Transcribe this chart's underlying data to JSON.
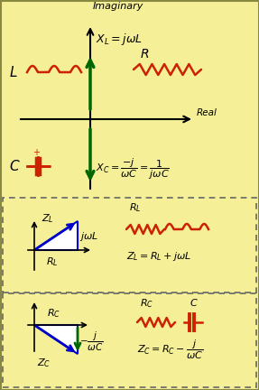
{
  "bg_color": "#f5f098",
  "red": "#cc2200",
  "green": "#006600",
  "blue": "#0000cc",
  "black": "#000000",
  "fig_width": 2.87,
  "fig_height": 4.32,
  "dpi": 100
}
